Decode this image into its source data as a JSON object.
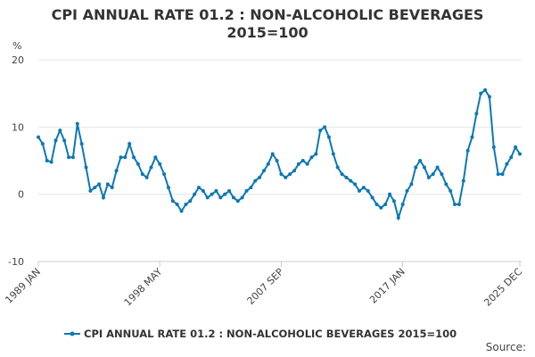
{
  "chart_data": {
    "type": "line",
    "title": "CPI ANNUAL RATE 01.2 : NON-ALCOHOLIC BEVERAGES 2015=100",
    "y_label": "%",
    "source": "Source:",
    "categories": [
      "1989 JAN",
      null,
      null,
      null,
      null,
      null,
      null,
      null,
      null,
      null,
      null,
      null,
      null,
      null,
      null,
      null,
      null,
      null,
      null,
      null,
      null,
      null,
      null,
      null,
      null,
      null,
      null,
      null,
      "1998 MAY",
      null,
      null,
      null,
      null,
      null,
      null,
      null,
      null,
      null,
      null,
      null,
      null,
      null,
      null,
      null,
      null,
      null,
      null,
      null,
      null,
      null,
      null,
      null,
      null,
      null,
      null,
      null,
      "2007 SEP",
      null,
      null,
      null,
      null,
      null,
      null,
      null,
      null,
      null,
      null,
      null,
      null,
      null,
      null,
      null,
      null,
      null,
      null,
      null,
      null,
      null,
      null,
      null,
      null,
      null,
      null,
      null,
      "2017 JAN",
      null,
      null,
      null,
      null,
      null,
      null,
      null,
      null,
      null,
      null,
      null,
      null,
      null,
      null,
      null,
      null,
      null,
      null,
      null,
      null,
      null,
      null,
      null,
      null,
      null,
      null,
      "2025 DEC"
    ],
    "series": [
      {
        "name": "CPI ANNUAL RATE 01.2 : NON-ALCOHOLIC BEVERAGES 2015=100",
        "color": "#0b78b5",
        "values": [
          8.5,
          7.5,
          5,
          4.8,
          8,
          9.5,
          8,
          5.5,
          5.5,
          10.5,
          7.5,
          4,
          0.5,
          1,
          1.5,
          -0.5,
          1.5,
          1,
          3.5,
          5.5,
          5.5,
          7.5,
          5.5,
          4.5,
          3,
          2.5,
          4,
          5.5,
          4.5,
          3,
          1,
          -1,
          -1.5,
          -2.5,
          -1.5,
          -1,
          0,
          1,
          0.5,
          -0.5,
          0,
          0.5,
          -0.5,
          0,
          0.5,
          -0.5,
          -1,
          -0.5,
          0.5,
          1,
          2,
          2.5,
          3.5,
          4.5,
          6,
          5,
          3,
          2.5,
          3,
          3.5,
          4.5,
          5,
          4.5,
          5.5,
          6,
          9.5,
          10,
          8.5,
          6,
          4,
          3,
          2.5,
          2,
          1.5,
          0.5,
          1,
          0.5,
          -0.5,
          -1.5,
          -2,
          -1.5,
          0,
          -1,
          -3.5,
          -1.5,
          0.5,
          1.5,
          4,
          5,
          4,
          2.5,
          3,
          4,
          3,
          1.5,
          0.5,
          -1.5,
          -1.5,
          2,
          6.5,
          8.5,
          12,
          15,
          15.5,
          14.5,
          7,
          3,
          3,
          4.5,
          5.5,
          7,
          6
        ]
      }
    ],
    "ylim": [
      -10,
      20
    ],
    "yticks": [
      -10,
      0,
      10,
      20
    ],
    "grid": true
  }
}
